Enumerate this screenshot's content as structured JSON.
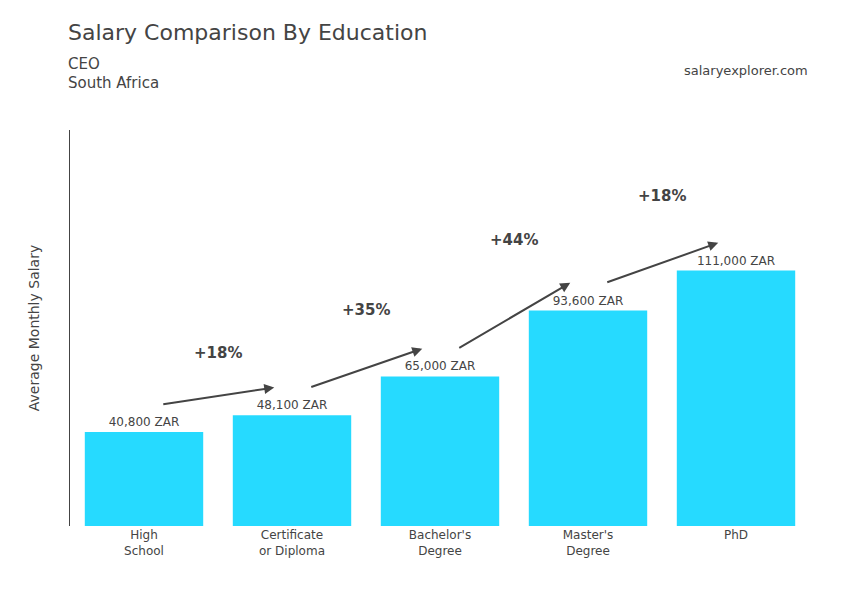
{
  "chart_data": {
    "type": "bar",
    "title": "Salary Comparison By Education",
    "subtitle": "CEO\nSouth Africa",
    "source": "salaryexplorer.com",
    "ylabel": "Average Monthly Salary",
    "categories": [
      "High\nSchool",
      "Certificate\nor Diploma",
      "Bachelor's\nDegree",
      "Master's\nDegree",
      "PhD"
    ],
    "values": [
      40800,
      48100,
      65000,
      93600,
      111000
    ],
    "value_labels": [
      "40,800 ZAR",
      "48,100 ZAR",
      "65,000 ZAR",
      "93,600 ZAR",
      "111,000 ZAR"
    ],
    "data_labels": true,
    "annotations": [
      "+18%",
      "+35%",
      "+44%",
      "+18%"
    ],
    "color": "#00d4ff",
    "ylim": [
      0,
      172050
    ],
    "yticks": [],
    "tick_labels": "x",
    "grid": false
  }
}
